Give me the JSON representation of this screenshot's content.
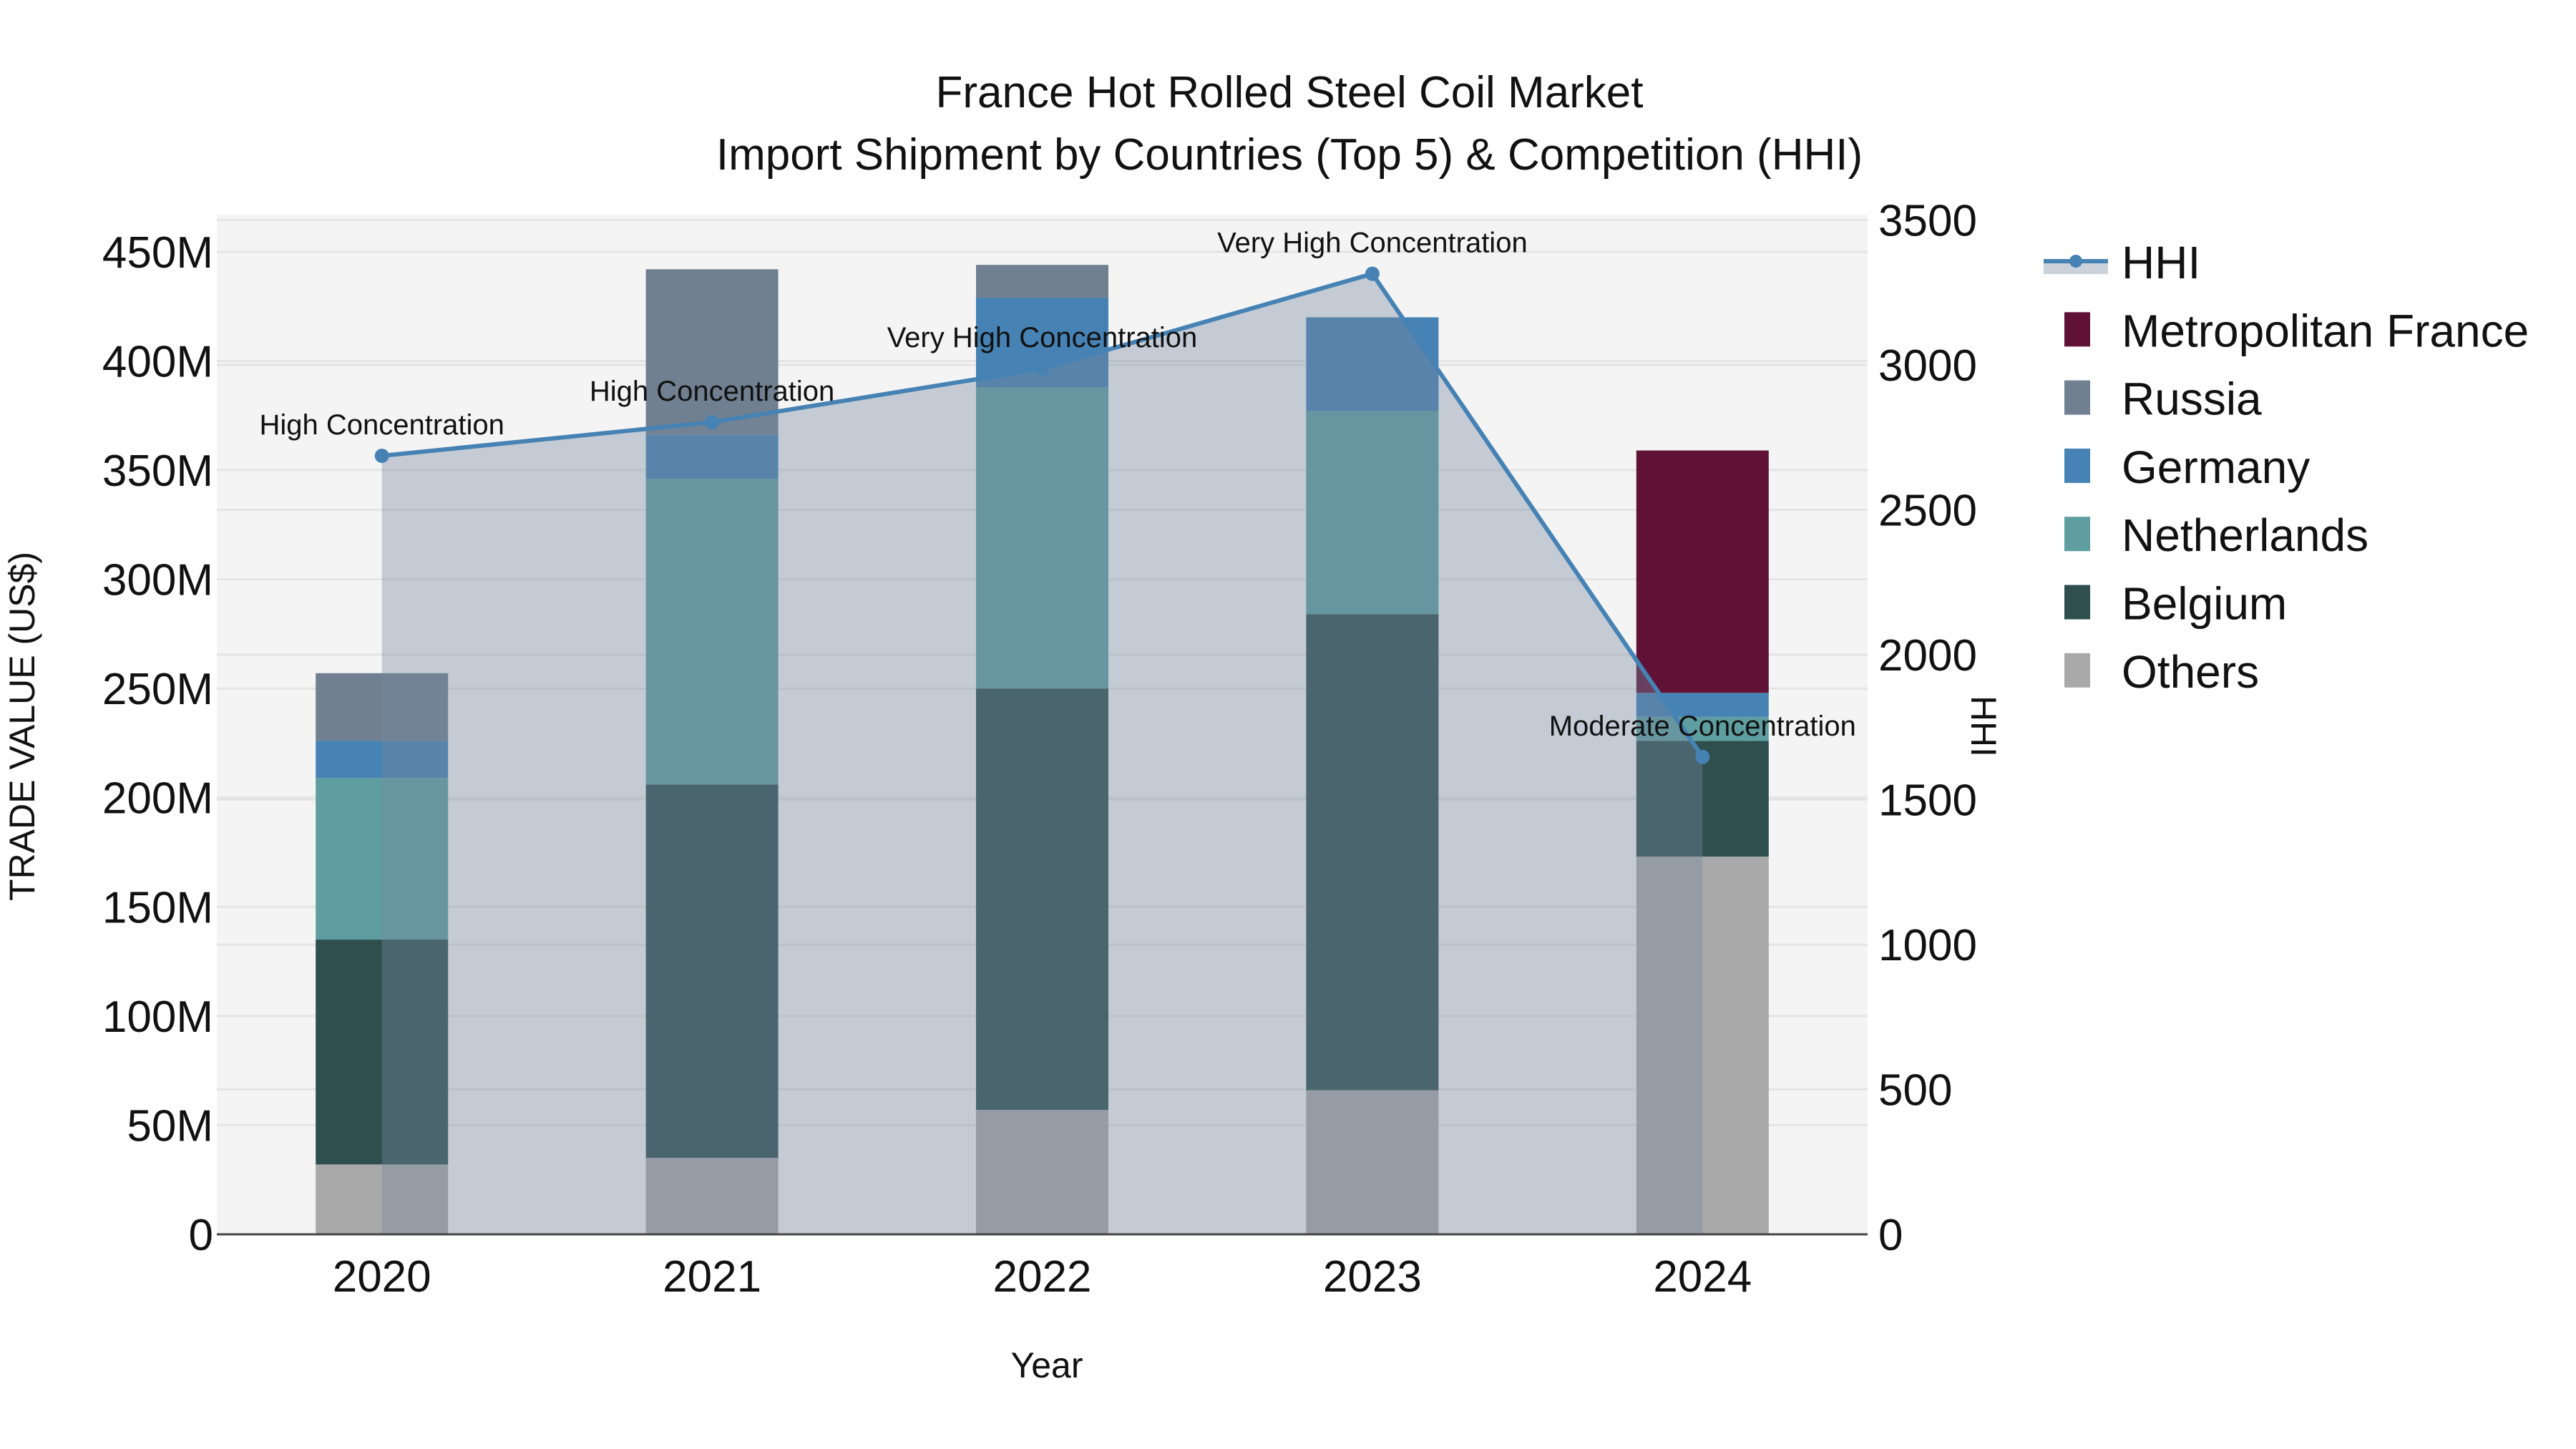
{
  "chart_data": {
    "type": "bar",
    "stacked": true,
    "title": "France Hot Rolled Steel Coil Market",
    "subtitle": "Import Shipment by Countries (Top 5) & Competition (HHI)",
    "xlabel": "Year",
    "ylabel": "TRADE VALUE (US$)",
    "y2label": "HHI",
    "categories": [
      "2020",
      "2021",
      "2022",
      "2023",
      "2024"
    ],
    "ylim": [
      0,
      467000000
    ],
    "y2lim": [
      0,
      3518
    ],
    "yticks": [
      {
        "value": 0,
        "label": "0"
      },
      {
        "value": 50000000,
        "label": "50M"
      },
      {
        "value": 100000000,
        "label": "100M"
      },
      {
        "value": 150000000,
        "label": "150M"
      },
      {
        "value": 200000000,
        "label": "200M"
      },
      {
        "value": 250000000,
        "label": "250M"
      },
      {
        "value": 300000000,
        "label": "300M"
      },
      {
        "value": 350000000,
        "label": "350M"
      },
      {
        "value": 400000000,
        "label": "400M"
      },
      {
        "value": 450000000,
        "label": "450M"
      }
    ],
    "y2ticks": [
      {
        "value": 0,
        "label": "0"
      },
      {
        "value": 500,
        "label": "500"
      },
      {
        "value": 1000,
        "label": "1000"
      },
      {
        "value": 1500,
        "label": "1500"
      },
      {
        "value": 2000,
        "label": "2000"
      },
      {
        "value": 2500,
        "label": "2500"
      },
      {
        "value": 3000,
        "label": "3000"
      },
      {
        "value": 3500,
        "label": "3500"
      }
    ],
    "series": [
      {
        "name": "Others",
        "color": "#A9A9A9",
        "values": [
          32000000,
          35000000,
          57000000,
          66000000,
          173000000
        ]
      },
      {
        "name": "Belgium",
        "color": "#2F4F4F",
        "values": [
          103000000,
          171000000,
          193000000,
          218000000,
          53000000
        ]
      },
      {
        "name": "Netherlands",
        "color": "#5F9EA0",
        "values": [
          74000000,
          140000000,
          138000000,
          93000000,
          11000000
        ]
      },
      {
        "name": "Germany",
        "color": "#4682B4",
        "values": [
          17000000,
          20000000,
          41000000,
          43000000,
          11000000
        ]
      },
      {
        "name": "Russia",
        "color": "#708090",
        "values": [
          31000000,
          76000000,
          15000000,
          0,
          0
        ]
      },
      {
        "name": "Metropolitan France",
        "color": "#601236",
        "values": [
          0,
          0,
          0,
          0,
          111000000
        ]
      }
    ],
    "line_series": {
      "name": "HHI",
      "axis": "y2",
      "color": "#4682B4",
      "fill": "rgba(119,136,160,0.38)",
      "values": [
        2686,
        2802,
        2987,
        3314,
        1647
      ],
      "annotations": [
        "High Concentration",
        "High Concentration",
        "Very High Concentration",
        "Very High Concentration",
        "Moderate Concentration"
      ]
    },
    "legend": {
      "position": "right",
      "items": [
        "HHI",
        "Metropolitan France",
        "Russia",
        "Germany",
        "Netherlands",
        "Belgium",
        "Others"
      ]
    },
    "grid": true,
    "plot_background": "#F4F4F4",
    "grid_color": "#E4E4E4"
  }
}
